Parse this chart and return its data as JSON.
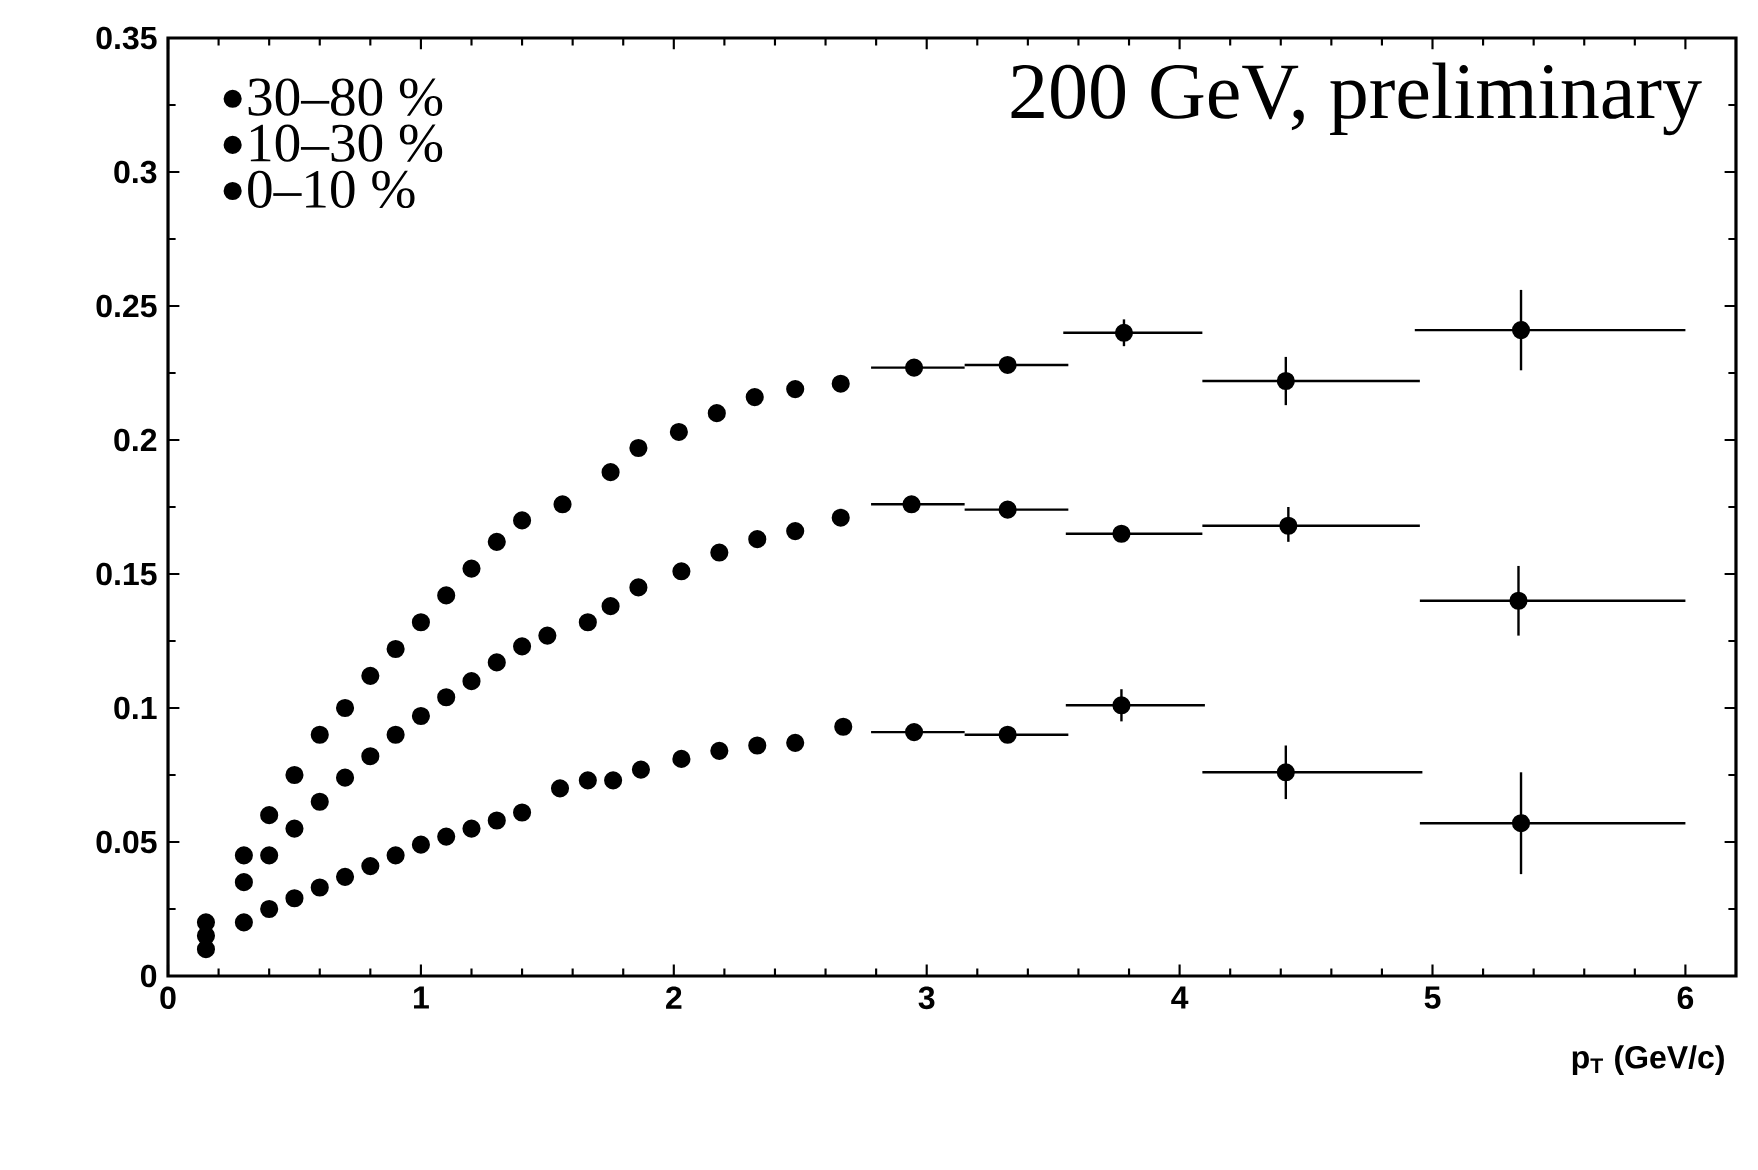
{
  "chart_data": {
    "type": "scatter",
    "xlabel": "p$_{T}$ (GeV/c)",
    "annotations": [
      "200 GeV, preliminary"
    ],
    "xlim": [
      0,
      6.2
    ],
    "xticks": [
      0,
      1,
      2,
      3,
      4,
      5,
      6
    ],
    "ylim": [
      0,
      0.35
    ],
    "yticks": [
      0,
      0.05,
      0.1,
      0.15,
      0.2,
      0.25,
      0.3,
      0.35
    ],
    "legend": "top left",
    "marker": "circle",
    "grid": false,
    "series": [
      {
        "name": "30–80 %",
        "color": "#000000",
        "x": [
          0.15,
          0.3,
          0.4,
          0.5,
          0.6,
          0.7,
          0.8,
          0.9,
          1.0,
          1.1,
          1.2,
          1.3,
          1.4,
          1.56,
          1.75,
          1.86,
          2.02,
          2.17,
          2.32,
          2.48,
          2.66,
          2.95,
          3.32,
          3.78,
          4.42,
          5.35
        ],
        "values": [
          0.02,
          0.045,
          0.06,
          0.075,
          0.09,
          0.1,
          0.112,
          0.122,
          0.132,
          0.142,
          0.152,
          0.162,
          0.17,
          0.176,
          0.188,
          0.197,
          0.203,
          0.21,
          0.216,
          0.219,
          0.221,
          0.227,
          0.228,
          0.24,
          0.222,
          0.241
        ],
        "errors": [
          null,
          null,
          null,
          null,
          null,
          null,
          null,
          null,
          null,
          null,
          null,
          null,
          null,
          null,
          null,
          null,
          null,
          null,
          null,
          null,
          null,
          null,
          null,
          [
            0.235,
            0.245
          ],
          [
            0.213,
            0.231
          ],
          [
            0.226,
            0.256
          ]
        ],
        "xerrors": [
          null,
          null,
          null,
          null,
          null,
          null,
          null,
          null,
          null,
          null,
          null,
          null,
          null,
          null,
          null,
          null,
          null,
          null,
          null,
          null,
          null,
          [
            2.78,
            3.15
          ],
          [
            3.15,
            3.56
          ],
          [
            3.54,
            4.09
          ],
          [
            4.09,
            4.95
          ],
          [
            4.93,
            6.0
          ]
        ]
      },
      {
        "name": "10–30 %",
        "color": "#000000",
        "x": [
          0.15,
          0.3,
          0.4,
          0.5,
          0.6,
          0.7,
          0.8,
          0.9,
          1.0,
          1.1,
          1.2,
          1.3,
          1.4,
          1.5,
          1.66,
          1.75,
          1.86,
          2.03,
          2.18,
          2.33,
          2.48,
          2.66,
          2.94,
          3.32,
          3.77,
          4.43,
          5.34
        ],
        "values": [
          0.015,
          0.035,
          0.045,
          0.055,
          0.065,
          0.074,
          0.082,
          0.09,
          0.097,
          0.104,
          0.11,
          0.117,
          0.123,
          0.127,
          0.132,
          0.138,
          0.145,
          0.151,
          0.158,
          0.163,
          0.166,
          0.171,
          0.176,
          0.174,
          0.165,
          0.168,
          0.14
        ],
        "errors": [
          null,
          null,
          null,
          null,
          null,
          null,
          null,
          null,
          null,
          null,
          null,
          null,
          null,
          null,
          null,
          null,
          null,
          null,
          null,
          null,
          null,
          null,
          null,
          null,
          null,
          [
            0.162,
            0.175
          ],
          [
            0.127,
            0.153
          ]
        ],
        "xerrors": [
          null,
          null,
          null,
          null,
          null,
          null,
          null,
          null,
          null,
          null,
          null,
          null,
          null,
          null,
          null,
          null,
          null,
          null,
          null,
          null,
          null,
          null,
          [
            2.78,
            3.15
          ],
          [
            3.15,
            3.56
          ],
          [
            3.55,
            4.09
          ],
          [
            4.09,
            4.95
          ],
          [
            4.95,
            6.0
          ]
        ]
      },
      {
        "name": "0–10 %",
        "color": "#000000",
        "x": [
          0.15,
          0.3,
          0.4,
          0.5,
          0.6,
          0.7,
          0.8,
          0.9,
          1.0,
          1.1,
          1.2,
          1.3,
          1.4,
          1.55,
          1.66,
          1.76,
          1.87,
          2.03,
          2.18,
          2.33,
          2.48,
          2.67,
          2.95,
          3.32,
          3.77,
          4.42,
          5.35
        ],
        "values": [
          0.01,
          0.02,
          0.025,
          0.029,
          0.033,
          0.037,
          0.041,
          0.045,
          0.049,
          0.052,
          0.055,
          0.058,
          0.061,
          0.07,
          0.073,
          0.073,
          0.077,
          0.081,
          0.084,
          0.086,
          0.087,
          0.093,
          0.091,
          0.09,
          0.101,
          0.076,
          0.057
        ],
        "errors": [
          null,
          null,
          null,
          null,
          null,
          null,
          null,
          null,
          null,
          null,
          null,
          null,
          null,
          null,
          null,
          null,
          null,
          null,
          null,
          null,
          null,
          null,
          null,
          null,
          [
            0.095,
            0.107
          ],
          [
            0.066,
            0.086
          ],
          [
            0.038,
            0.076
          ]
        ],
        "xerrors": [
          null,
          null,
          null,
          null,
          null,
          null,
          null,
          null,
          null,
          null,
          null,
          null,
          null,
          null,
          null,
          null,
          null,
          null,
          null,
          null,
          null,
          null,
          [
            2.78,
            3.15
          ],
          [
            3.15,
            3.56
          ],
          [
            3.55,
            4.1
          ],
          [
            4.09,
            4.96
          ],
          [
            4.95,
            6.0
          ]
        ]
      }
    ]
  }
}
